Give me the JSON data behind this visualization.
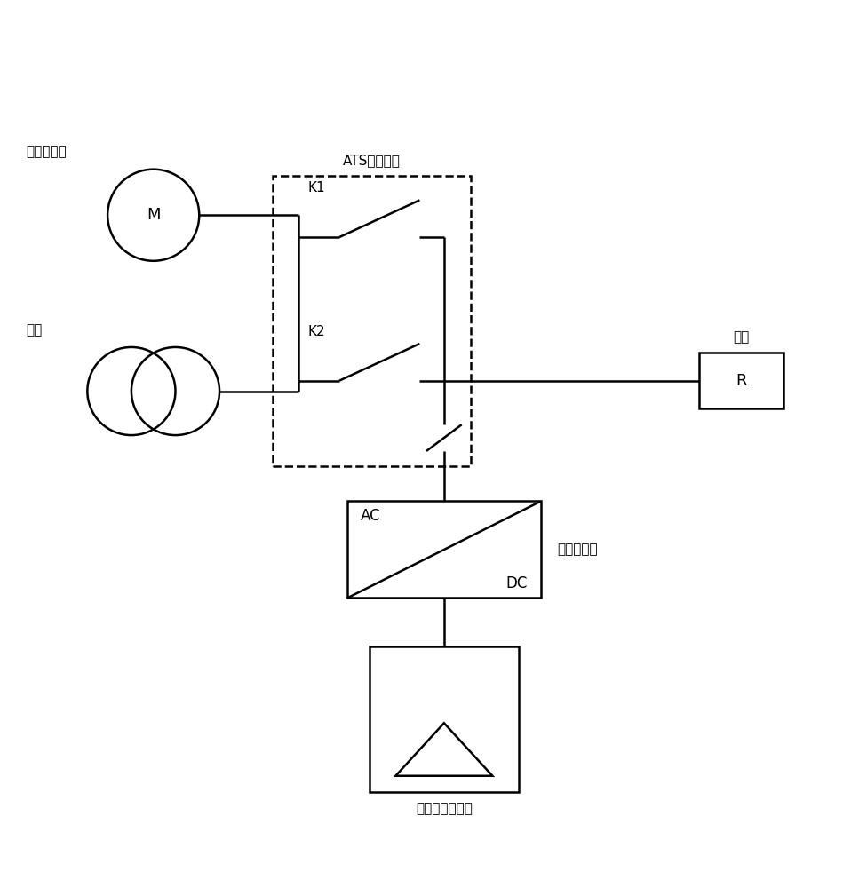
{
  "bg_color": "#ffffff",
  "line_color": "#000000",
  "fig_width": 9.67,
  "fig_height": 10.0,
  "labels": {
    "diesel_gen": "柴油发电机",
    "grid": "电网",
    "ats": "ATS切换开关",
    "load": "负载",
    "inverter": "并网逆变器",
    "solar": "光伏太阳能组件",
    "k1": "K1",
    "k2": "K2",
    "M": "M",
    "AC": "AC",
    "DC": "DC",
    "R": "R"
  }
}
